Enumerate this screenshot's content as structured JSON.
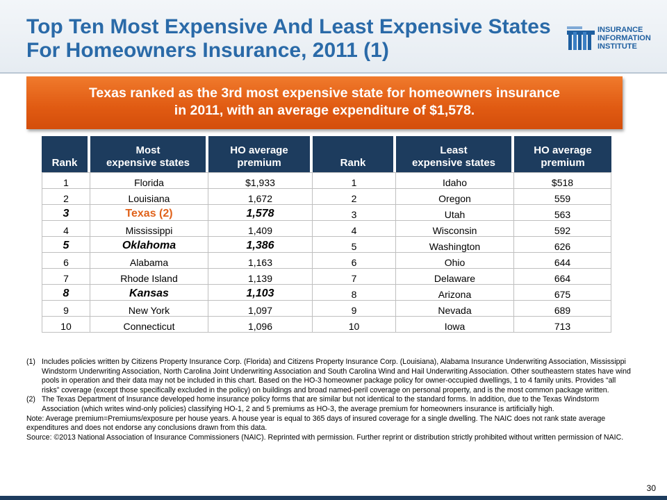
{
  "header": {
    "title": "Top Ten Most Expensive And Least Expensive States For Homeowners Insurance, 2011 (1)",
    "logo_lines": [
      "INSURANCE",
      "INFORMATION",
      "INSTITUTE"
    ]
  },
  "callout": {
    "line1": "Texas ranked as the 3rd most expensive state for homeowners insurance",
    "line2": "in 2011, with an average expenditure of $1,578."
  },
  "table": {
    "headers": {
      "rank": "Rank",
      "most_1": "Most",
      "most_2": "expensive states",
      "premium_1": "HO average",
      "premium_2": "premium",
      "least_1": "Least",
      "least_2": "expensive states"
    },
    "rows": [
      {
        "rank": "1",
        "most": "Florida",
        "most_premium": "$1,933",
        "rank2": "1",
        "least": "Idaho",
        "least_premium": "$518"
      },
      {
        "rank": "2",
        "most": "Louisiana",
        "most_premium": "1,672",
        "rank2": "2",
        "least": "Oregon",
        "least_premium": "559"
      },
      {
        "rank": "3",
        "most": "Texas (2)",
        "most_premium": "1,578",
        "rank2": "3",
        "least": "Utah",
        "least_premium": "563"
      },
      {
        "rank": "4",
        "most": "Mississippi",
        "most_premium": "1,409",
        "rank2": "4",
        "least": "Wisconsin",
        "least_premium": "592"
      },
      {
        "rank": "5",
        "most": "Oklahoma",
        "most_premium": "1,386",
        "rank2": "5",
        "least": "Washington",
        "least_premium": "626"
      },
      {
        "rank": "6",
        "most": "Alabama",
        "most_premium": "1,163",
        "rank2": "6",
        "least": "Ohio",
        "least_premium": "644"
      },
      {
        "rank": "7",
        "most": "Rhode Island",
        "most_premium": "1,139",
        "rank2": "7",
        "least": "Delaware",
        "least_premium": "664"
      },
      {
        "rank": "8",
        "most": "Kansas",
        "most_premium": "1,103",
        "rank2": "8",
        "least": "Arizona",
        "least_premium": "675"
      },
      {
        "rank": "9",
        "most": "New York",
        "most_premium": "1,097",
        "rank2": "9",
        "least": "Nevada",
        "least_premium": "689"
      },
      {
        "rank": "10",
        "most": "Connecticut",
        "most_premium": "1,096",
        "rank2": "10",
        "least": "Iowa",
        "least_premium": "713"
      }
    ],
    "highlight_rows": [
      2,
      4,
      7
    ],
    "highlight_colors": {
      "texas": "#e0621a",
      "header_bg": "#1d3c5e"
    }
  },
  "notes": {
    "n1_num": "(1)",
    "n1_text": "Includes policies written by Citizens Property Insurance Corp. (Florida) and Citizens Property Insurance Corp. (Louisiana), Alabama Insurance Underwriting Association, Mississippi Windstorm Underwriting Association, North Carolina Joint Underwriting Association and South Carolina Wind and Hail Underwriting Association. Other southeastern states have wind pools in operation and their data may not be included in this chart. Based on the HO-3 homeowner package policy for owner-occupied dwellings, 1 to 4 family units. Provides “all risks” coverage (except those specifically excluded in the policy) on buildings and broad named-peril coverage on personal property, and is the most common package written.",
    "n2_num": "(2)",
    "n2_text": "The Texas Department of Insurance developed home insurance policy forms that are similar but not identical to the standard forms. In addition, due to the Texas Windstorm Association (which writes wind-only policies) classifying HO-1, 2 and 5 premiums as HO-3, the average premium for homeowners insurance is artificially high.",
    "note": "Note: Average premium=Premiums/exposure per house years. A house year is equal to 365 days of insured coverage for a single dwelling. The NAIC does not rank state average expenditures and does not endorse any conclusions drawn from this data.",
    "source": "Source: ©2013 National Association of Insurance Commissioners (NAIC). Reprinted with permission. Further reprint or distribution strictly prohibited without written permission of NAIC."
  },
  "page_number": "30"
}
